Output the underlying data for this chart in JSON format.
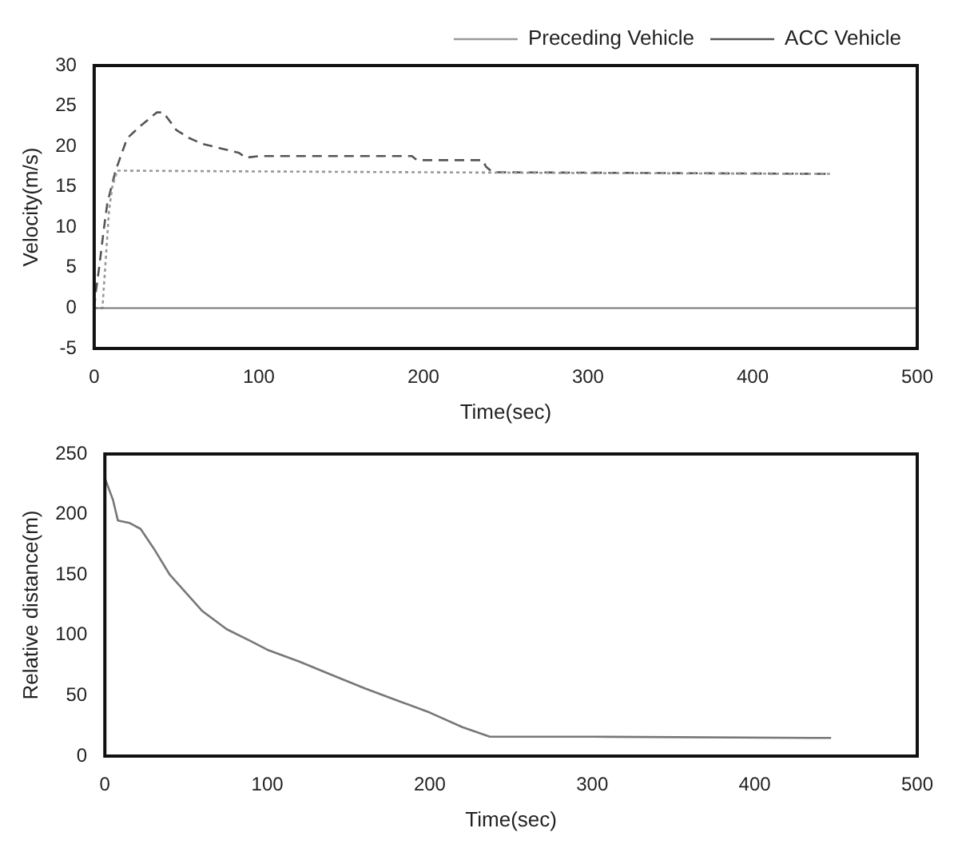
{
  "chart_data": [
    {
      "type": "line",
      "xlabel": "Time(sec)",
      "ylabel": "Velocity(m/s)",
      "legend": "top right",
      "grid": false,
      "marker": "none",
      "xlim": [
        0,
        500
      ],
      "xticks": [
        0,
        100,
        200,
        300,
        400,
        500
      ],
      "ylim": [
        -5,
        30
      ],
      "yticks": [
        -5,
        0,
        5,
        10,
        15,
        20,
        25,
        30
      ],
      "ref_lines": [
        {
          "axis": "y",
          "value": 0,
          "color": "#777777"
        }
      ],
      "series": [
        {
          "name": "Preceding Vehicle",
          "color": "#999999",
          "line_style": "dotted",
          "x": [
            0,
            5,
            7,
            9,
            11,
            14,
            100,
            200,
            300,
            447
          ],
          "values": [
            0,
            0,
            6,
            12,
            15,
            17,
            16.9,
            16.8,
            16.7,
            16.6
          ]
        },
        {
          "name": "ACC Vehicle",
          "color": "#555555",
          "line_style": "dashed",
          "x": [
            0,
            1,
            3,
            6,
            8,
            13,
            20,
            28,
            38,
            42,
            50,
            58,
            66,
            78,
            88,
            92,
            100,
            190,
            193,
            196,
            236,
            238,
            242,
            447
          ],
          "values": [
            0,
            2,
            5,
            10,
            13,
            17,
            21,
            22.5,
            24.2,
            24.2,
            22,
            21,
            20.3,
            19.7,
            19.2,
            18.6,
            18.8,
            18.8,
            18.8,
            18.3,
            18.3,
            17.5,
            16.8,
            16.6
          ]
        }
      ]
    },
    {
      "type": "line",
      "xlabel": "Time(sec)",
      "ylabel": "Relative distance(m)",
      "legend": false,
      "grid": false,
      "marker": "none",
      "xlim": [
        0,
        500
      ],
      "xticks": [
        0,
        100,
        200,
        300,
        400,
        500
      ],
      "ylim": [
        0,
        250
      ],
      "yticks": [
        0,
        50,
        100,
        150,
        200,
        250
      ],
      "series": [
        {
          "color": "#777777",
          "line_style": "solid",
          "x": [
            0,
            5,
            8,
            15,
            22,
            30,
            40,
            50,
            60,
            75,
            90,
            100,
            120,
            140,
            160,
            180,
            200,
            220,
            237,
            300,
            447
          ],
          "values": [
            230,
            212,
            195,
            193,
            188,
            172,
            150,
            135,
            120,
            105,
            95,
            88,
            78,
            67,
            56,
            46,
            36,
            24,
            16,
            16,
            15
          ]
        }
      ]
    }
  ]
}
